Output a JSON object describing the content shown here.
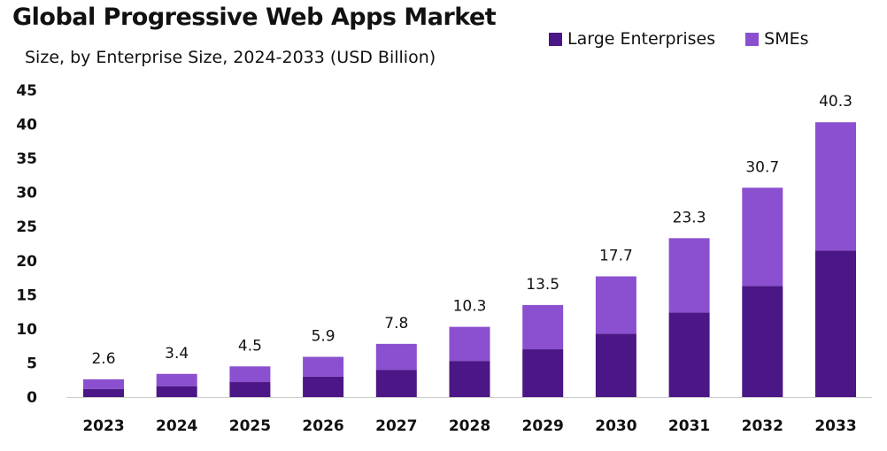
{
  "chart_data": {
    "type": "bar",
    "stacked": true,
    "title": "Global Progressive Web Apps Market",
    "subtitle": "Size, by Enterprise Size, 2024-2033 (USD Billion)",
    "categories": [
      "2023",
      "2024",
      "2025",
      "2026",
      "2027",
      "2028",
      "2029",
      "2030",
      "2031",
      "2032",
      "2033"
    ],
    "totals": [
      "2.6",
      "3.4",
      "4.5",
      "5.9",
      "7.8",
      "10.3",
      "13.5",
      "17.7",
      "23.3",
      "30.7",
      "40.3"
    ],
    "series": [
      {
        "name": "Large Enterprises",
        "color": "#4b1685",
        "values": [
          1.2,
          1.6,
          2.2,
          3.0,
          4.0,
          5.3,
          7.0,
          9.3,
          12.4,
          16.3,
          21.5
        ]
      },
      {
        "name": "SMEs",
        "color": "#8b50cf",
        "values": [
          1.4,
          1.8,
          2.3,
          2.9,
          3.8,
          5.0,
          6.5,
          8.4,
          10.9,
          14.4,
          18.8
        ]
      }
    ],
    "yticks": [
      0,
      5,
      10,
      15,
      20,
      25,
      30,
      35,
      40,
      45
    ],
    "ylim": [
      0,
      45
    ],
    "grid": false,
    "legend": "top-right"
  }
}
